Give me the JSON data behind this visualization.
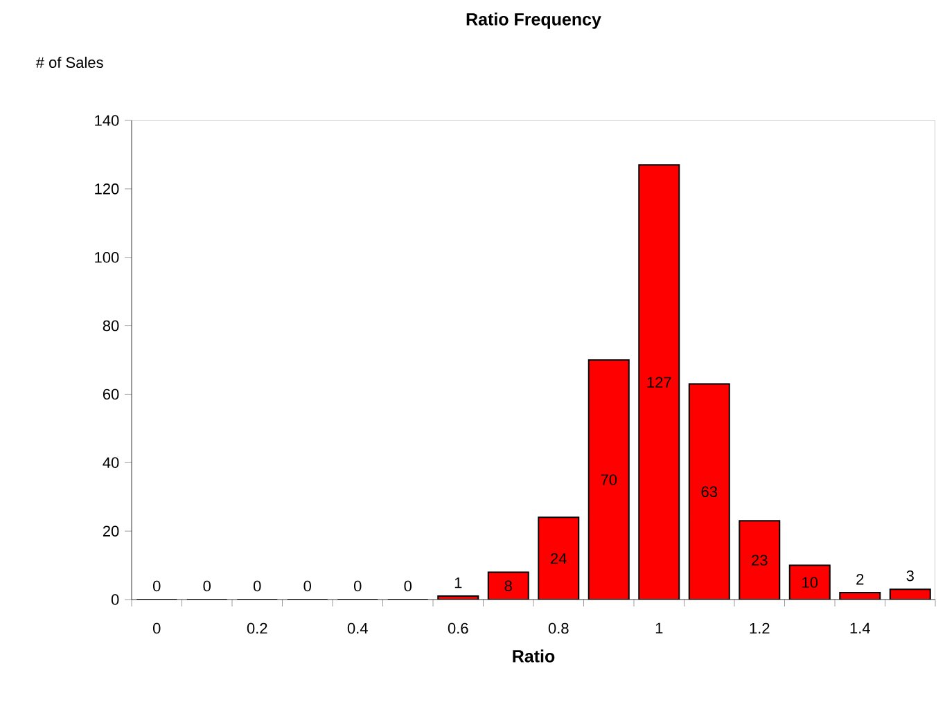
{
  "chart_data": {
    "type": "bar",
    "title": "Ratio Frequency",
    "xlabel": "Ratio",
    "ylabel": "# of Sales",
    "categories": [
      "0",
      null,
      "0.2",
      null,
      "0.4",
      null,
      "0.6",
      null,
      "0.8",
      null,
      "1",
      null,
      "1.2",
      null,
      "1.4",
      null
    ],
    "values": [
      0,
      0,
      0,
      0,
      0,
      0,
      1,
      8,
      24,
      70,
      127,
      63,
      23,
      10,
      2,
      3
    ],
    "color": "#ff0000",
    "ylim": [
      0,
      140
    ],
    "yticks": [
      0,
      20,
      40,
      60,
      80,
      100,
      120,
      140
    ],
    "data_labels": true,
    "grid": false
  }
}
